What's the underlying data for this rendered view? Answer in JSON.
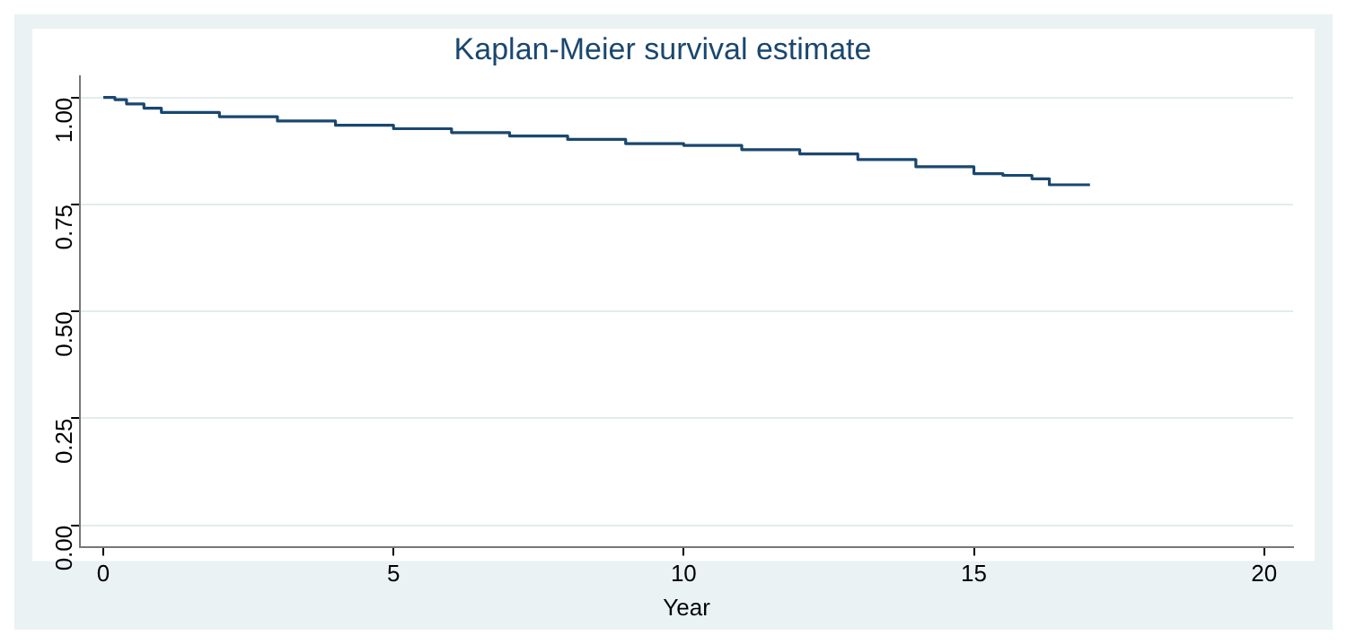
{
  "chart_data": {
    "type": "step",
    "title": "Kaplan-Meier survival estimate",
    "xlabel": "Year",
    "x": [
      0,
      0.2,
      0.4,
      0.7,
      1,
      2,
      3,
      4,
      5,
      6,
      7,
      8,
      9,
      10,
      11,
      12,
      13,
      14,
      15,
      15.5,
      16,
      16.3,
      17
    ],
    "series": [
      {
        "color": "#1a476f",
        "values": [
          1,
          0.995,
          0.985,
          0.975,
          0.965,
          0.955,
          0.945,
          0.935,
          0.927,
          0.918,
          0.91,
          0.902,
          0.892,
          0.888,
          0.878,
          0.868,
          0.855,
          0.838,
          0.822,
          0.818,
          0.81,
          0.796,
          0.796
        ]
      }
    ],
    "xlim": [
      -0.4,
      20.5
    ],
    "xticks": [
      0,
      5,
      10,
      15,
      20
    ],
    "ylim": [
      -0.05,
      1.05
    ],
    "yticks": [
      {
        "value": 0,
        "label": "0.00"
      },
      {
        "value": 0.25,
        "label": "0.25"
      },
      {
        "value": 0.5,
        "label": "0.50"
      },
      {
        "value": 0.75,
        "label": "0.75"
      },
      {
        "value": 1,
        "label": "1.00"
      }
    ],
    "grid": "y",
    "legend": false,
    "line_style": "solid",
    "marker": "none"
  }
}
